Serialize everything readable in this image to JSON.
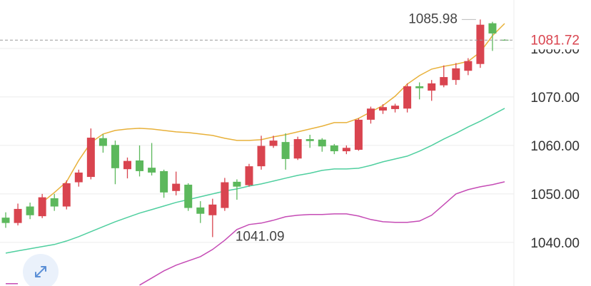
{
  "chart_data": {
    "type": "candlestick",
    "colors": {
      "up": "#d9444f",
      "down": "#5cb85c"
    },
    "ylim": [
      1031,
      1090
    ],
    "yticks": [
      {
        "value": 1040,
        "label": "1040.00"
      },
      {
        "value": 1050,
        "label": "1050.00"
      },
      {
        "value": 1060,
        "label": "1060.00"
      },
      {
        "value": 1070,
        "label": "1070.00"
      },
      {
        "value": 1080,
        "label": "1080.00"
      }
    ],
    "grid": true,
    "candles": {
      "open": [
        1045.1,
        1044.0,
        1047.4,
        1045.4,
        1049.1,
        1047.4,
        1052.4,
        1053.5,
        1061.5,
        1060.1,
        1055.1,
        1056.9,
        1055.4,
        1054.7,
        1050.6,
        1051.9,
        1047.2,
        1045.6,
        1047.1,
        1052.5,
        1051.8,
        1055.7,
        1059.9,
        1060.7,
        1057.3,
        1061.3,
        1061.2,
        1060.0,
        1058.8,
        1059.1,
        1065.3,
        1067.2,
        1067.5,
        1067.6,
        1072.2,
        1071.3,
        1072.4,
        1073.5,
        1075.4,
        1076.8,
        1085.2,
        1081.8
      ],
      "high": [
        1046.2,
        1048.0,
        1048.2,
        1050.0,
        1050.0,
        1052.8,
        1055.0,
        1063.5,
        1062.3,
        1061.0,
        1057.5,
        1060.0,
        1060.5,
        1055.0,
        1054.6,
        1052.2,
        1048.5,
        1049.0,
        1053.3,
        1053.0,
        1056.2,
        1062.0,
        1062.0,
        1062.5,
        1061.8,
        1062.2,
        1061.5,
        1060.3,
        1060.0,
        1065.6,
        1068.0,
        1068.5,
        1068.6,
        1072.8,
        1073.0,
        1073.5,
        1076.5,
        1077.0,
        1078.0,
        1085.98,
        1085.5,
        1081.9
      ],
      "low": [
        1043.0,
        1043.5,
        1044.8,
        1045.0,
        1046.5,
        1046.8,
        1051.5,
        1053.0,
        1058.5,
        1052.0,
        1053.2,
        1053.6,
        1053.8,
        1049.2,
        1049.7,
        1046.5,
        1044.0,
        1041.09,
        1046.5,
        1048.8,
        1051.5,
        1055.0,
        1059.5,
        1055.0,
        1057.0,
        1059.5,
        1058.7,
        1058.2,
        1058.2,
        1058.9,
        1064.5,
        1066.5,
        1066.8,
        1066.8,
        1069.5,
        1069.2,
        1072.0,
        1072.5,
        1074.5,
        1076.0,
        1079.5,
        1081.6
      ],
      "close": [
        1044.0,
        1046.9,
        1045.6,
        1049.3,
        1047.4,
        1052.2,
        1054.4,
        1061.6,
        1059.9,
        1055.3,
        1056.8,
        1054.7,
        1054.4,
        1050.3,
        1052.1,
        1047.1,
        1045.9,
        1047.8,
        1052.4,
        1051.5,
        1055.7,
        1059.9,
        1061.0,
        1057.2,
        1061.3,
        1060.9,
        1059.8,
        1058.8,
        1059.5,
        1065.3,
        1067.6,
        1067.9,
        1068.2,
        1072.2,
        1071.8,
        1072.8,
        1074.1,
        1075.9,
        1077.4,
        1084.9,
        1083.1,
        1081.72
      ]
    },
    "series": [
      {
        "color": "#e8b13a",
        "values": [
          null,
          null,
          null,
          1048.24,
          1050.29,
          1052.5,
          1056.91,
          1060.59,
          1062.35,
          1063.09,
          1063.38,
          1063.53,
          1063.38,
          1063.09,
          1062.79,
          1062.65,
          1062.35,
          1062.06,
          1061.47,
          1061.03,
          1061.03,
          1061.18,
          1061.76,
          1062.21,
          1062.79,
          1063.38,
          1063.97,
          1064.71,
          1064.71,
          1065.59,
          1066.91,
          1068.24,
          1070.15,
          1072.65,
          1074.41,
          1075.74,
          1076.32,
          1076.76,
          1077.35,
          1079.26,
          1082.65,
          1085.15
        ]
      },
      {
        "color": "#4fcf9f",
        "values": [
          1037.79,
          1038.24,
          1038.68,
          1039.12,
          1039.56,
          1040.29,
          1041.18,
          1042.21,
          1043.24,
          1044.26,
          1045.15,
          1046.03,
          1046.76,
          1047.5,
          1048.24,
          1048.82,
          1049.41,
          1050,
          1050.59,
          1051.03,
          1051.62,
          1052.06,
          1052.65,
          1053.24,
          1053.82,
          1054.26,
          1054.85,
          1055.15,
          1055.15,
          1055.29,
          1055.88,
          1056.62,
          1057.21,
          1057.79,
          1058.82,
          1060,
          1061.32,
          1062.5,
          1063.82,
          1065,
          1066.32,
          1067.65
        ]
      },
      {
        "color": "#c54bb5",
        "values": [
          1031.47,
          1031.47,
          null,
          null,
          null,
          null,
          null,
          null,
          null,
          null,
          null,
          1031.18,
          1032.65,
          1034.12,
          1035.29,
          1036.18,
          1037.06,
          1038.53,
          1040.44,
          1042.65,
          1043.68,
          1043.97,
          1044.56,
          1045.29,
          1045.59,
          1045.74,
          1045.74,
          1045.88,
          1045.88,
          1045.44,
          1044.71,
          1044.26,
          1044.12,
          1044.12,
          1044.41,
          1045.59,
          1047.79,
          1050,
          1050.88,
          1051.47,
          1051.91,
          1052.5
        ]
      }
    ]
  }
}
